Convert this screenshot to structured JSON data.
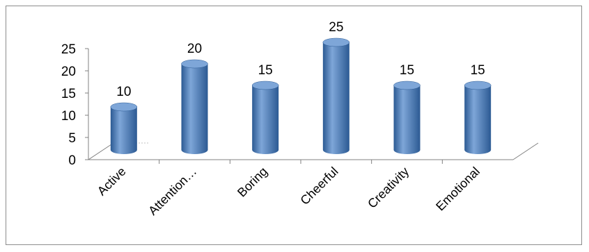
{
  "chart_data": {
    "type": "bar",
    "style": "3d-cylinder",
    "categories": [
      "Active",
      "Attention…",
      "Boring",
      "Cheerful",
      "Creativity",
      "Emotional"
    ],
    "values": [
      10,
      20,
      15,
      25,
      15,
      15
    ],
    "data_labels": [
      "10",
      "20",
      "15",
      "25",
      "15",
      "15"
    ],
    "y_ticks": [
      "0",
      "5",
      "10",
      "15",
      "20",
      "25"
    ],
    "ylim": [
      0,
      25
    ],
    "grid": false,
    "legend": "none",
    "bar_color": "#4f81bd",
    "bar_dark": "#2c5a93",
    "bar_light": "#7ea6d8",
    "axis_color": "#808080"
  }
}
